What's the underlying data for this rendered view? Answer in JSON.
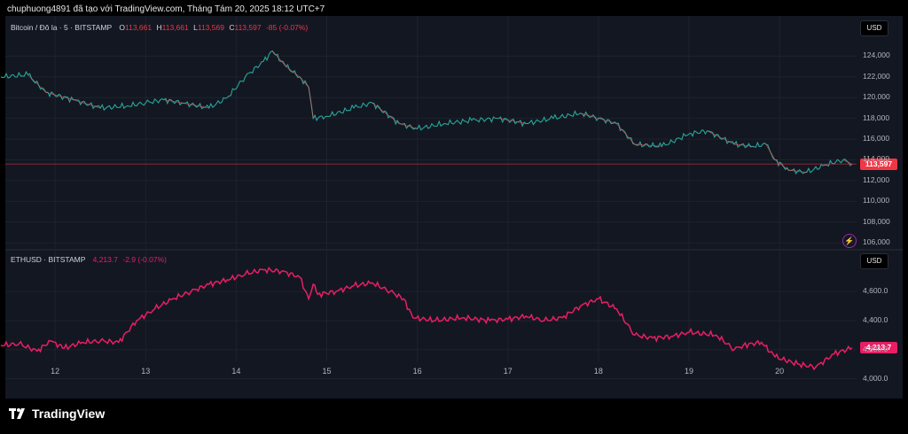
{
  "header": {
    "text": "chuphuong4891 đã tạo với TradingView.com, Tháng Tám 20, 2025 18:12 UTC+7"
  },
  "logo": {
    "text": "TradingView",
    "icon": "tradingview-logo-icon"
  },
  "currency_label": "USD",
  "chart_data": [
    {
      "type": "line",
      "title": "Bitcoin / Đô la · 5 · BITSTAMP",
      "ohlc": {
        "o_label": "O",
        "o": "113,661",
        "h_label": "H",
        "h": "113,661",
        "l_label": "L",
        "l": "113,569",
        "c_label": "C",
        "c": "113,597",
        "change": "-85 (-0.07%)"
      },
      "last_price": "113,597",
      "last_value": 113597,
      "color": "#26a69a",
      "down_color": "#ef5350",
      "price_line_color": "#f23645",
      "ylim": [
        105500,
        126000
      ],
      "yticks": [
        106000,
        108000,
        110000,
        112000,
        114000,
        116000,
        118000,
        120000,
        122000,
        124000
      ],
      "ytick_labels": [
        "106,000",
        "108,000",
        "110,000",
        "112,000",
        "114,000",
        "116,000",
        "118,000",
        "120,000",
        "122,000",
        "124,000"
      ],
      "x": [
        11.4,
        11.7,
        11.9,
        12.2,
        12.5,
        12.8,
        13.0,
        13.2,
        13.4,
        13.7,
        13.9,
        14.1,
        14.3,
        14.4,
        14.55,
        14.7,
        14.8,
        14.85,
        15.0,
        15.3,
        15.5,
        15.8,
        16.0,
        16.3,
        16.6,
        16.9,
        17.2,
        17.5,
        17.8,
        18.0,
        18.2,
        18.4,
        18.7,
        19.0,
        19.2,
        19.5,
        19.7,
        19.85,
        19.95,
        20.1,
        20.3,
        20.5,
        20.7,
        20.8
      ],
      "y": [
        122000,
        122200,
        120500,
        119800,
        119000,
        119200,
        119500,
        119800,
        119500,
        119000,
        120000,
        122000,
        123500,
        124500,
        123000,
        122000,
        121000,
        118000,
        118200,
        119000,
        119500,
        117500,
        117000,
        117500,
        117800,
        118000,
        117500,
        118000,
        118500,
        118000,
        117500,
        115500,
        115300,
        116500,
        116800,
        115500,
        115300,
        115500,
        114000,
        113000,
        112800,
        113500,
        114000,
        113597
      ]
    },
    {
      "type": "line",
      "title": "ETHUSD · BITSTAMP",
      "value_text": "4,213.7",
      "change": "-2.9 (-0.07%)",
      "last_price": "4,213.7",
      "last_value": 4213.7,
      "color": "#e91e63",
      "ylim": [
        3985,
        4790
      ],
      "yticks": [
        4000,
        4200,
        4400,
        4600
      ],
      "ytick_labels": [
        "4,000.0",
        "4,200.0",
        "4,400.0",
        "4,600.0"
      ],
      "x": [
        11.4,
        11.6,
        11.8,
        11.95,
        12.1,
        12.3,
        12.5,
        12.7,
        12.9,
        13.1,
        13.3,
        13.5,
        13.7,
        13.9,
        14.1,
        14.3,
        14.5,
        14.7,
        14.8,
        14.85,
        14.9,
        15.1,
        15.3,
        15.5,
        15.7,
        15.85,
        15.95,
        16.2,
        16.5,
        16.8,
        17.0,
        17.2,
        17.4,
        17.6,
        17.8,
        18.0,
        18.2,
        18.4,
        18.6,
        18.8,
        19.0,
        19.3,
        19.5,
        19.6,
        19.8,
        19.95,
        20.2,
        20.4,
        20.6,
        20.8
      ],
      "y": [
        4230,
        4240,
        4190,
        4260,
        4210,
        4250,
        4260,
        4250,
        4400,
        4480,
        4550,
        4600,
        4650,
        4680,
        4720,
        4750,
        4740,
        4700,
        4550,
        4650,
        4580,
        4600,
        4640,
        4660,
        4600,
        4550,
        4420,
        4400,
        4420,
        4400,
        4410,
        4430,
        4400,
        4420,
        4500,
        4550,
        4480,
        4300,
        4280,
        4290,
        4320,
        4300,
        4200,
        4230,
        4250,
        4150,
        4100,
        4080,
        4170,
        4213.7
      ]
    }
  ],
  "x_axis": {
    "xlim": [
      11.45,
      20.85
    ],
    "ticks": [
      12,
      13,
      14,
      15,
      16,
      17,
      18,
      19,
      20
    ],
    "tick_labels": [
      "12",
      "13",
      "14",
      "15",
      "16",
      "17",
      "18",
      "19",
      "20"
    ]
  }
}
